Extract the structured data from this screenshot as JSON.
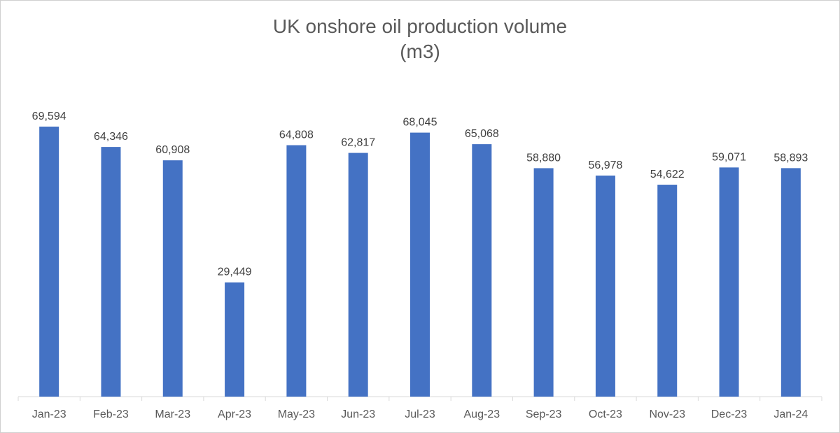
{
  "chart_data": {
    "type": "bar",
    "title_line1": "UK onshore oil production volume",
    "title_line2": "(m3)",
    "categories": [
      "Jan-23",
      "Feb-23",
      "Mar-23",
      "Apr-23",
      "May-23",
      "Jun-23",
      "Jul-23",
      "Aug-23",
      "Sep-23",
      "Oct-23",
      "Nov-23",
      "Dec-23",
      "Jan-24"
    ],
    "values": [
      69594,
      64346,
      60908,
      29449,
      64808,
      62817,
      68045,
      65068,
      58880,
      56978,
      54622,
      59071,
      58893
    ],
    "value_labels": [
      "69,594",
      "64,346",
      "60,908",
      "29,449",
      "64,808",
      "62,817",
      "68,045",
      "65,068",
      "58,880",
      "56,978",
      "54,622",
      "59,071",
      "58,893"
    ],
    "ylim": [
      0,
      80000
    ],
    "grid": false,
    "legend": "none",
    "colors": {
      "bar": "#4472c4",
      "text": "#595959",
      "axis": "#d9d9d9"
    }
  }
}
